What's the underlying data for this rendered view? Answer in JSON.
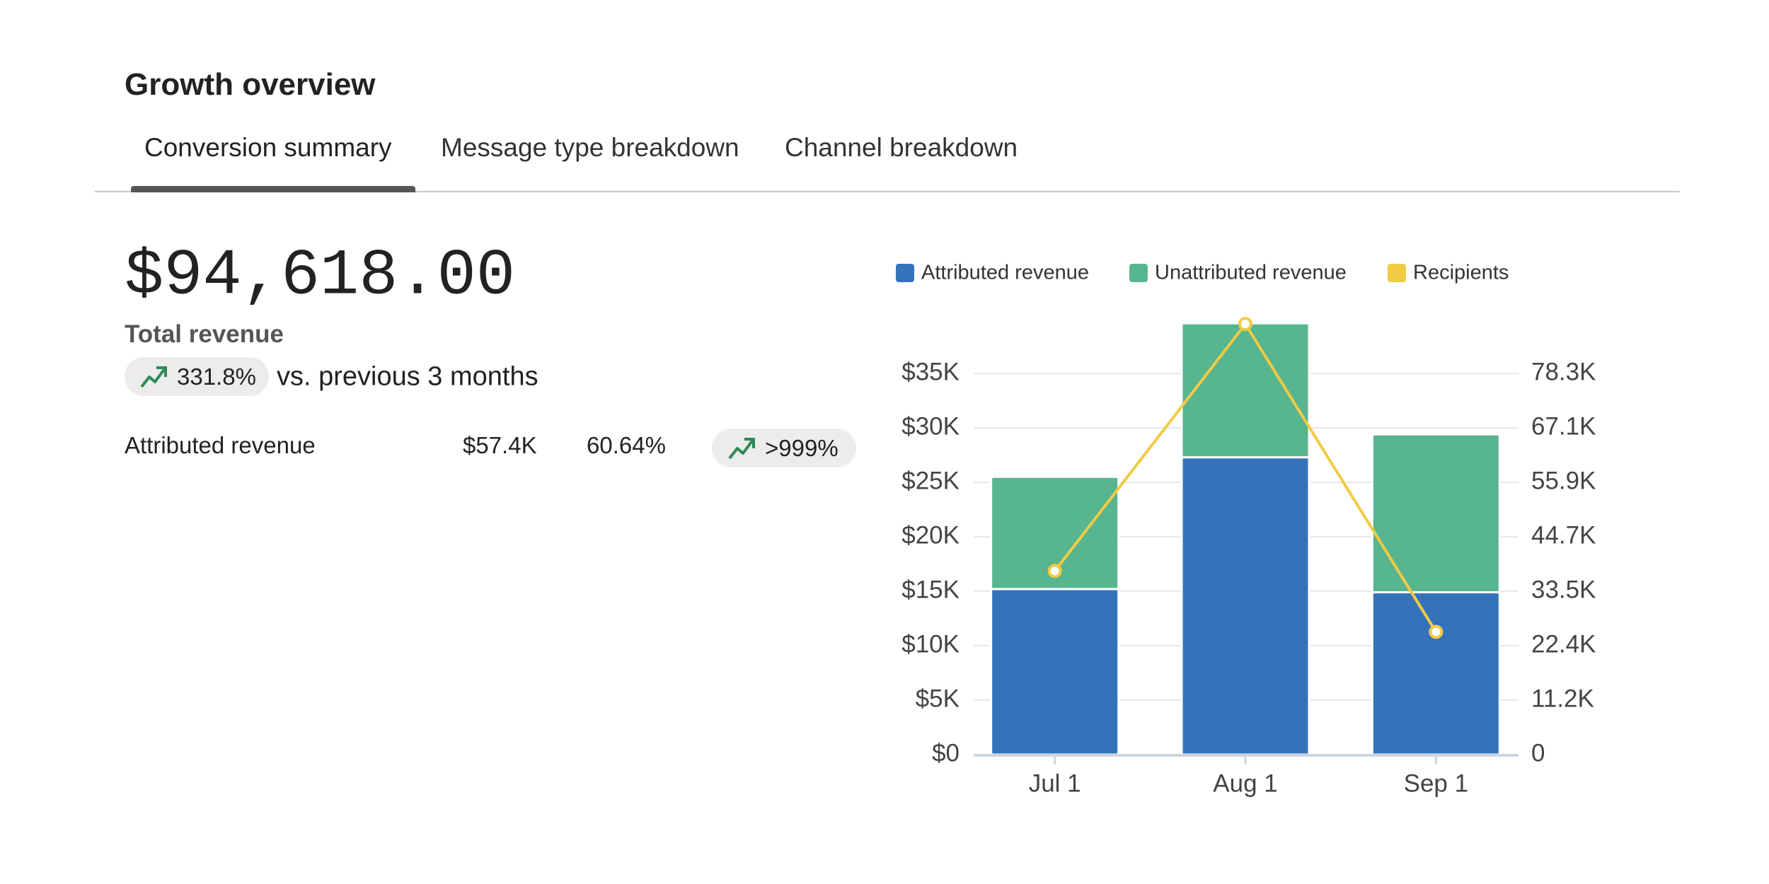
{
  "title": "Growth overview",
  "tabs": [
    "Conversion summary",
    "Message type breakdown",
    "Channel breakdown"
  ],
  "summary": {
    "total": "$94,618.00",
    "label": "Total revenue",
    "change": "331.8%",
    "comparison": "vs. previous 3 months"
  },
  "breakdown": [
    {
      "name": "Attributed revenue",
      "value": "$57.4K",
      "share": "60.64%",
      "change": ">999%"
    }
  ],
  "chart_data": {
    "type": "bar",
    "stacked": true,
    "categories": [
      "Jul 1",
      "Aug 1",
      "Sep 1"
    ],
    "series": [
      {
        "name": "Attributed revenue",
        "color": "#3473ba",
        "values": [
          15200,
          27300,
          14900
        ]
      },
      {
        "name": "Unattributed revenue",
        "color": "#57b58f",
        "values": [
          10300,
          12300,
          14500
        ]
      },
      {
        "name": "Recipients",
        "color": "#f2cb44",
        "type": "line",
        "axis": "y2",
        "values": [
          37700,
          88400,
          25200
        ]
      }
    ],
    "ylim": [
      0,
      40000
    ],
    "yticks": [
      {
        "value": 0,
        "label": "$0"
      },
      {
        "value": 5000,
        "label": "$5K"
      },
      {
        "value": 10000,
        "label": "$10K"
      },
      {
        "value": 15000,
        "label": "$15K"
      },
      {
        "value": 20000,
        "label": "$20K"
      },
      {
        "value": 25000,
        "label": "$25K"
      },
      {
        "value": 30000,
        "label": "$30K"
      },
      {
        "value": 35000,
        "label": "$35K"
      }
    ],
    "y2lim": [
      0,
      89440
    ],
    "y2ticks": [
      0,
      {
        "value": 11180,
        "label": "11.2K"
      },
      {
        "value": 22360,
        "label": "22.4K"
      },
      {
        "value": 33540,
        "label": "33.5K"
      },
      {
        "value": 44720,
        "label": "44.7K"
      },
      {
        "value": 55900,
        "label": "55.9K"
      },
      {
        "value": 67080,
        "label": "67.1K"
      },
      {
        "value": 78260,
        "label": "78.3K"
      }
    ],
    "grid": true
  }
}
